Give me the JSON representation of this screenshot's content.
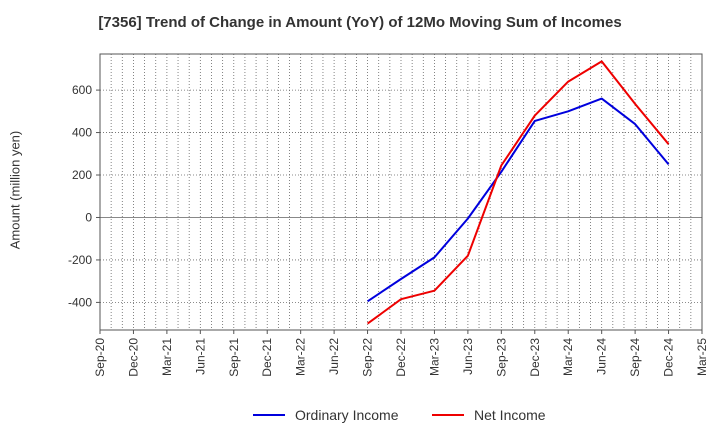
{
  "chart_data": {
    "type": "line",
    "title": "[7356]  Trend of Change in Amount (YoY) of 12Mo Moving Sum of Incomes",
    "ylabel": "Amount (million yen)",
    "xlabel": "",
    "categories": [
      "Sep-20",
      "Dec-20",
      "Mar-21",
      "Jun-21",
      "Sep-21",
      "Dec-21",
      "Mar-22",
      "Jun-22",
      "Sep-22",
      "Dec-22",
      "Mar-23",
      "Jun-23",
      "Sep-23",
      "Dec-23",
      "Mar-24",
      "Jun-24",
      "Sep-24",
      "Dec-24",
      "Mar-25"
    ],
    "ylim": [
      -530,
      770
    ],
    "yticks": [
      -400,
      -200,
      0,
      200,
      400,
      600
    ],
    "grid": true,
    "legend_position": "bottom",
    "series": [
      {
        "name": "Ordinary Income",
        "color": "#0000dd",
        "values": [
          null,
          null,
          null,
          null,
          null,
          null,
          null,
          null,
          -395,
          -290,
          -188,
          -5,
          215,
          455,
          500,
          560,
          440,
          250,
          null
        ]
      },
      {
        "name": "Net Income",
        "color": "#ee0000",
        "values": [
          null,
          null,
          null,
          null,
          null,
          null,
          null,
          null,
          -500,
          -385,
          -345,
          -180,
          245,
          480,
          640,
          735,
          535,
          345,
          null
        ]
      }
    ]
  }
}
